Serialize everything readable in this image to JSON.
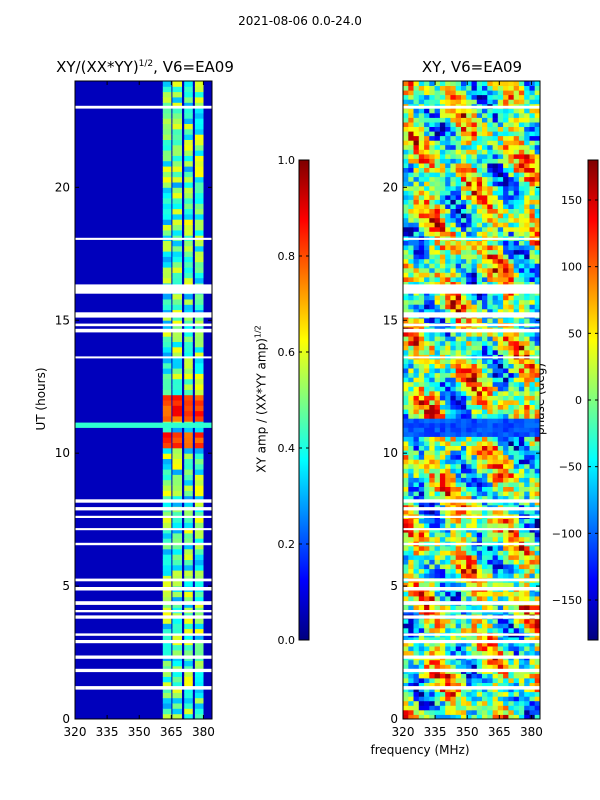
{
  "figure": {
    "suptitle": "2021-08-06 0.0-24.0",
    "shared_xlabel": "frequency (MHz)"
  },
  "colors": {
    "frame": "#000000",
    "background": "#ffffff",
    "jet": [
      "#00007f",
      "#0000ff",
      "#007fff",
      "#00ffff",
      "#7fff7f",
      "#ffff00",
      "#ff7f00",
      "#ff0000",
      "#7f0000"
    ]
  },
  "chart_data": [
    {
      "type": "heatmap",
      "title": "XY/(XX*YY)",
      "title_exponent": "1/2",
      "title_suffix": ", V6=EA09",
      "xlabel": "",
      "ylabel": "UT (hours)",
      "xlim": [
        320,
        384
      ],
      "ylim": [
        0,
        24
      ],
      "xticks": [
        320,
        335,
        350,
        365,
        380
      ],
      "yticks": [
        0,
        5,
        10,
        15,
        20
      ],
      "colorbar": {
        "label": "XY amp / (XX*YY amp)",
        "label_exponent": "1/2",
        "range": [
          0.0,
          1.0
        ],
        "ticks": [
          "0.0",
          "0.2",
          "0.4",
          "0.6",
          "0.8",
          "1.0"
        ],
        "tick_values": [
          0.0,
          0.2,
          0.4,
          0.6,
          0.8,
          1.0
        ]
      },
      "active_channel_bands_mhz": [
        [
          361,
          365
        ],
        [
          365.5,
          370
        ],
        [
          371,
          375
        ],
        [
          376,
          380
        ]
      ],
      "bright_events_hours": [
        10.5,
        11.5,
        12.0
      ]
    },
    {
      "type": "heatmap",
      "title": "XY",
      "title_suffix": ", V6=EA09",
      "xlabel": "frequency (MHz)",
      "ylabel": "",
      "xlim": [
        320,
        384
      ],
      "ylim": [
        0,
        24
      ],
      "xticks": [
        320,
        335,
        350,
        365,
        380
      ],
      "yticks": [
        0,
        5,
        10,
        15,
        20
      ],
      "colorbar": {
        "label": "phase (deg)",
        "range": [
          -180,
          180
        ],
        "ticks": [
          "−150",
          "−100",
          "−50",
          "0",
          "50",
          "100",
          "150"
        ],
        "tick_values": [
          -150,
          -100,
          -50,
          0,
          50,
          100,
          150
        ]
      }
    }
  ]
}
